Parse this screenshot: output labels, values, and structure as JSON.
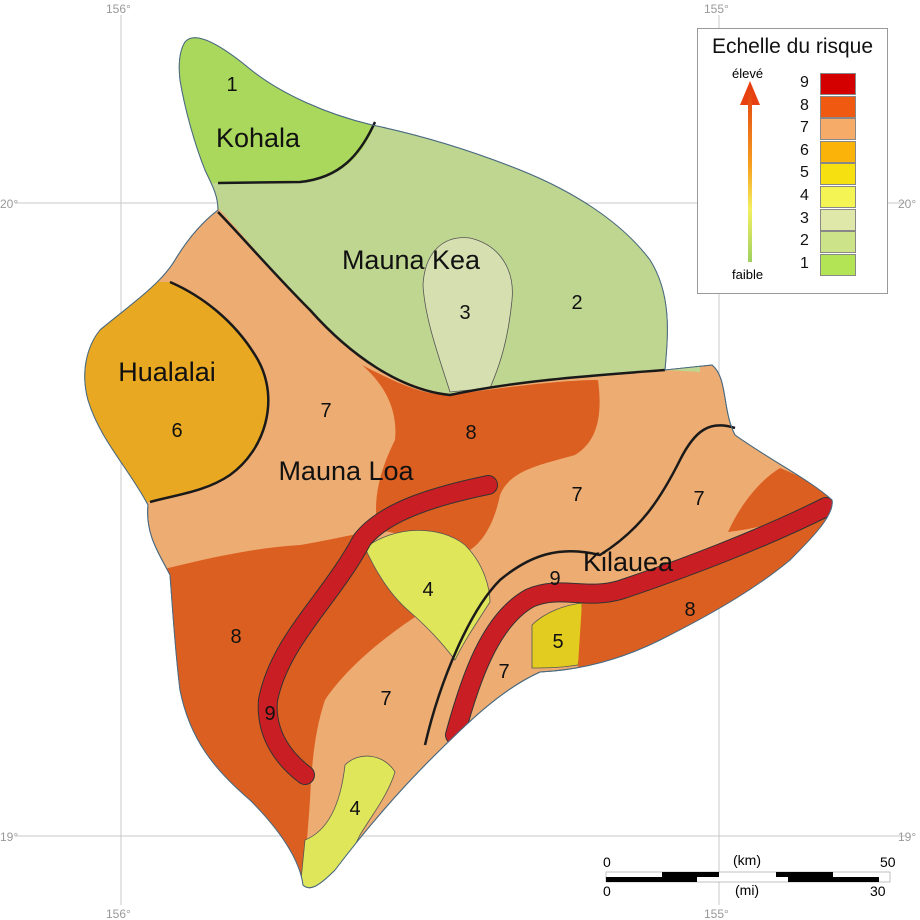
{
  "graticule": {
    "lon_top_left": "156°",
    "lon_top_right": "155°",
    "lon_bottom_left": "156°",
    "lon_bottom_right": "155°",
    "lat_20_left": "20°",
    "lat_20_right": "20°",
    "lat_19_left": "19°",
    "lat_19_right": "19°"
  },
  "volcanoes": {
    "kohala": "Kohala",
    "mauna_kea": "Mauna Kea",
    "hualalai": "Hualalai",
    "mauna_loa": "Mauna Loa",
    "kilauea": "Kilauea"
  },
  "zones": {
    "z_kohala": "1",
    "z_kea": "2",
    "z_kea_summit": "3",
    "z_hualalai": "6",
    "z_west7": "7",
    "z_center8": "8",
    "z_east7": "7",
    "z_east7b": "7",
    "z_sw8": "8",
    "z_center4": "4",
    "z_south7": "7",
    "z_sw9": "9",
    "z_south4": "4",
    "z_kil9": "9",
    "z_kil5": "5",
    "z_kil7": "7",
    "z_se8": "8"
  },
  "legend": {
    "title": "Echelle du risque",
    "high": "élevé",
    "low": "faible",
    "levels": [
      {
        "label": "9",
        "color": "#d40000"
      },
      {
        "label": "8",
        "color": "#f05a10"
      },
      {
        "label": "7",
        "color": "#f6ac68"
      },
      {
        "label": "6",
        "color": "#fbb30a"
      },
      {
        "label": "5",
        "color": "#f7e010"
      },
      {
        "label": "4",
        "color": "#f4f554"
      },
      {
        "label": "3",
        "color": "#dfe8a8"
      },
      {
        "label": "2",
        "color": "#cde38a"
      },
      {
        "label": "1",
        "color": "#b2e455"
      }
    ]
  },
  "scale": {
    "km_unit": "(km)",
    "km_start": "0",
    "km_end": "50",
    "mi_unit": "(mi)",
    "mi_start": "0",
    "mi_end": "30"
  },
  "colors": {
    "z1": "#a9d85c",
    "z2": "#bfd690",
    "z3": "#d6dfb0",
    "z4": "#dfe65a",
    "z5": "#e2cc20",
    "z6": "#e9a821",
    "z7": "#ecac72",
    "z8": "#dc5f22",
    "z9": "#c81e24"
  }
}
